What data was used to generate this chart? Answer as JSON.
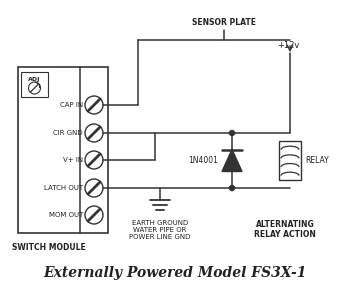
{
  "title": "Externally Powered Model FS3X-1",
  "title_fontsize": 10,
  "bg_color": "#ffffff",
  "line_color": "#333333",
  "text_color": "#222222",
  "switch_module_label": "SWITCH MODULE",
  "sensor_plate_label": "SENSOR PLATE",
  "alternating_label": "ALTERNATING\nRELAY ACTION",
  "earth_ground_label": "EARTH GROUND\nWATER PIPE OR\nPOWER LINE GND",
  "plus12v_label": "+12v",
  "relay_label": "RELAY",
  "diode_label": "1N4001",
  "adj_label": "ADJ",
  "terminal_labels": [
    "CAP IN",
    "CIR GND",
    "V+ IN",
    "LATCH OUT",
    "MOM OUT"
  ]
}
